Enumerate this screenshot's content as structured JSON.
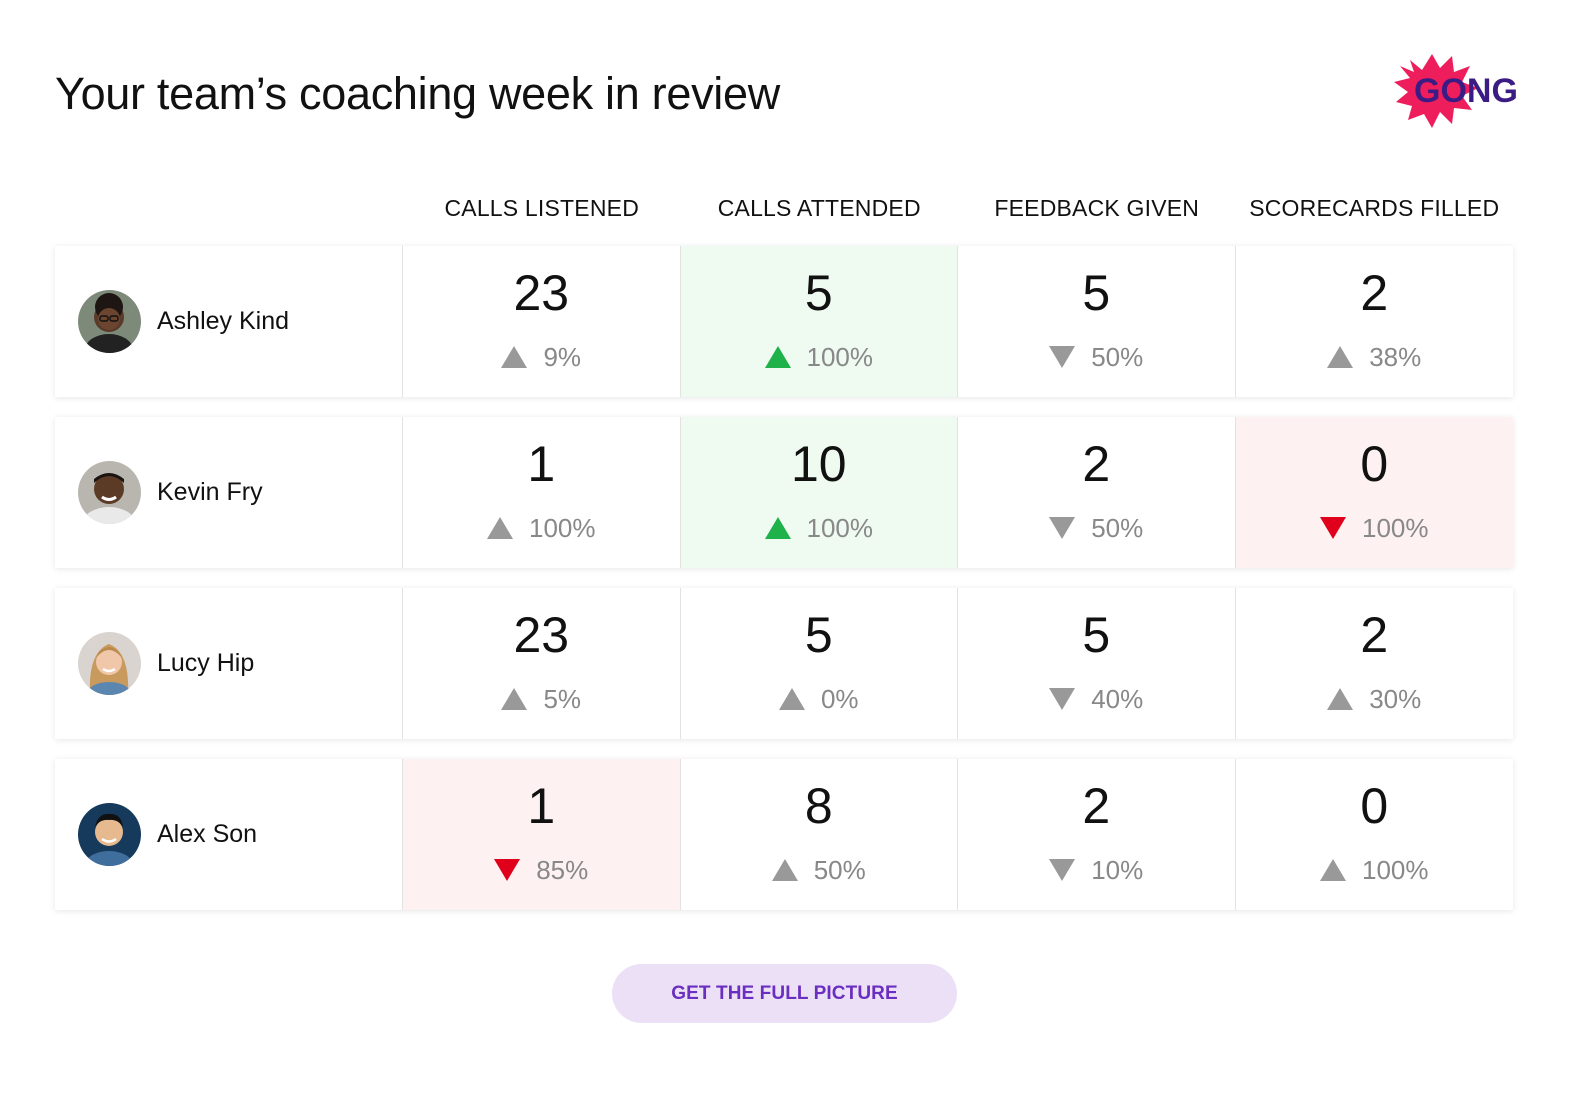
{
  "title": "Your team’s coaching week in review",
  "logo": {
    "text": "GONG",
    "burst_color": "#ee1e5c",
    "text_color": "#3b1c85"
  },
  "columns": [
    "CALLS LISTENED",
    "CALLS ATTENDED",
    "FEEDBACK GIVEN",
    "SCORECARDS FILLED"
  ],
  "colors": {
    "up_neutral": "#999999",
    "down_neutral": "#999999",
    "up_good": "#1fb14a",
    "down_bad": "#e0001b",
    "highlight_green": "#effaf1",
    "highlight_red": "#fdf1f1"
  },
  "rows": [
    {
      "name": "Ashley Kind",
      "avatar": "avatar-ashley-kind",
      "cells": [
        {
          "value": "23",
          "change": "9%",
          "direction": "up",
          "tone": "neutral"
        },
        {
          "value": "5",
          "change": "100%",
          "direction": "up",
          "tone": "good"
        },
        {
          "value": "5",
          "change": "50%",
          "direction": "down",
          "tone": "neutral"
        },
        {
          "value": "2",
          "change": "38%",
          "direction": "up",
          "tone": "neutral"
        }
      ]
    },
    {
      "name": "Kevin Fry",
      "avatar": "avatar-kevin-fry",
      "cells": [
        {
          "value": "1",
          "change": "100%",
          "direction": "up",
          "tone": "neutral"
        },
        {
          "value": "10",
          "change": "100%",
          "direction": "up",
          "tone": "good"
        },
        {
          "value": "2",
          "change": "50%",
          "direction": "down",
          "tone": "neutral"
        },
        {
          "value": "0",
          "change": "100%",
          "direction": "down",
          "tone": "bad"
        }
      ]
    },
    {
      "name": "Lucy Hip",
      "avatar": "avatar-lucy-hip",
      "cells": [
        {
          "value": "23",
          "change": "5%",
          "direction": "up",
          "tone": "neutral"
        },
        {
          "value": "5",
          "change": "0%",
          "direction": "up",
          "tone": "neutral"
        },
        {
          "value": "5",
          "change": "40%",
          "direction": "down",
          "tone": "neutral"
        },
        {
          "value": "2",
          "change": "30%",
          "direction": "up",
          "tone": "neutral"
        }
      ]
    },
    {
      "name": "Alex Son",
      "avatar": "avatar-alex-son",
      "cells": [
        {
          "value": "1",
          "change": "85%",
          "direction": "down",
          "tone": "bad"
        },
        {
          "value": "8",
          "change": "50%",
          "direction": "up",
          "tone": "neutral"
        },
        {
          "value": "2",
          "change": "10%",
          "direction": "down",
          "tone": "neutral"
        },
        {
          "value": "0",
          "change": "100%",
          "direction": "up",
          "tone": "neutral"
        }
      ]
    }
  ],
  "cta": {
    "label": "GET THE FULL PICTURE"
  }
}
